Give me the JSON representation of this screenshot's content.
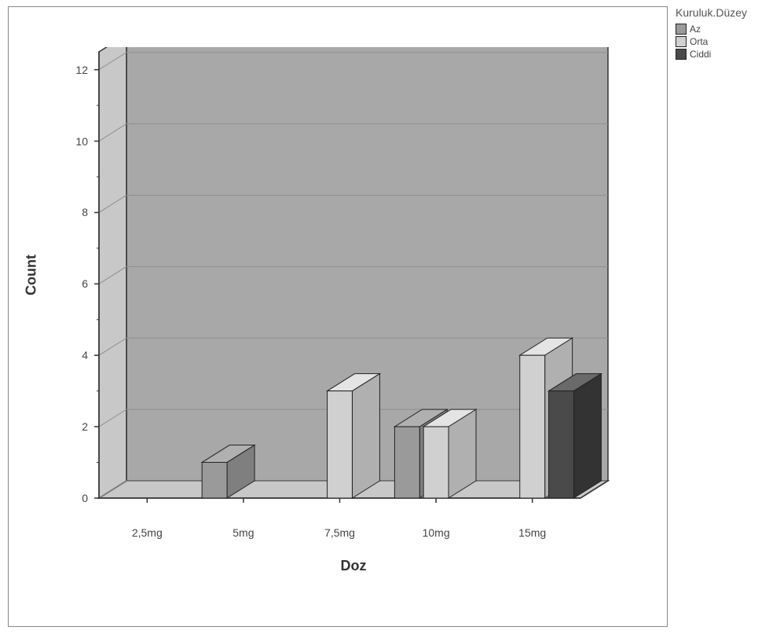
{
  "chart": {
    "type": "bar-3d",
    "background_color": "#ffffff",
    "outer_border_color": "#888888",
    "plot_background": "#a8a8a8",
    "plot_border_color": "#333333",
    "plot_floor_color": "#c8c8c8",
    "plot_backwall_color": "#a8a8a8",
    "grid_color": "#e0e0e0",
    "tick_font_size": 14,
    "title_font_size": 18,
    "x": {
      "title": "Doz",
      "categories": [
        "2,5mg",
        "5mg",
        "7,5mg",
        "10mg",
        "15mg"
      ]
    },
    "y": {
      "title": "Count",
      "lim": [
        0,
        12.5
      ],
      "ticks": [
        0,
        2,
        4,
        6,
        8,
        10,
        12
      ],
      "minor_step": 1
    },
    "legend": {
      "title": "Kuruluk.Düzey",
      "position": "right-top",
      "items": [
        {
          "label": "Az",
          "color": "#9a9a9a"
        },
        {
          "label": "Orta",
          "color": "#d0d0d0"
        },
        {
          "label": "Ciddi",
          "color": "#4a4a4a"
        }
      ]
    },
    "series": [
      {
        "name": "Az",
        "color_top": "#b0b0b0",
        "color_front": "#9a9a9a",
        "color_side": "#7f7f7f",
        "values": [
          0,
          1,
          0,
          2,
          0
        ]
      },
      {
        "name": "Orta",
        "color_top": "#e4e4e4",
        "color_front": "#d0d0d0",
        "color_side": "#b0b0b0",
        "values": [
          0,
          0,
          3,
          2,
          4
        ]
      },
      {
        "name": "Ciddi",
        "color_top": "#6a6a6a",
        "color_front": "#4a4a4a",
        "color_side": "#333333",
        "values": [
          0,
          0,
          0,
          0,
          3
        ]
      }
    ],
    "depth_dx": 35,
    "depth_dy": 22,
    "bar_width_ratio": 0.26,
    "group_gap_ratio": 0.04
  }
}
